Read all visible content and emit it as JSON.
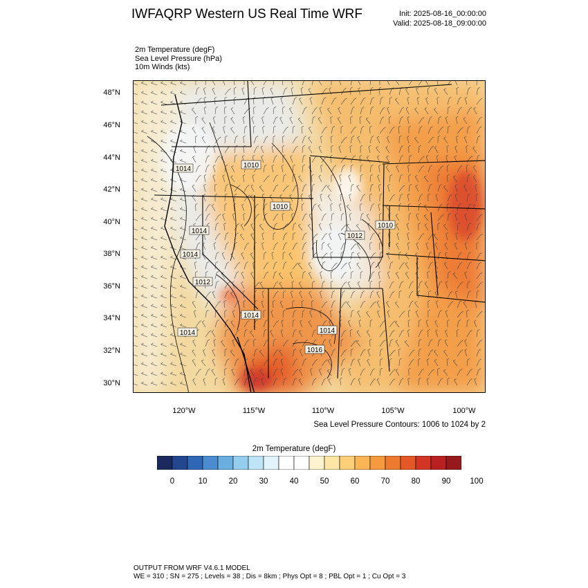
{
  "header": {
    "title": "IWFAQRP Western US Real Time WRF",
    "init": "Init: 2025-08-16_00:00:00",
    "valid": "Valid: 2025-08-18_09:00:00"
  },
  "fields": [
    "2m Temperature   (degF)",
    "Sea Level Pressure   (hPa)",
    "10m Winds   (kts)"
  ],
  "map": {
    "lat_ticks": [
      "48°N",
      "46°N",
      "44°N",
      "42°N",
      "40°N",
      "38°N",
      "36°N",
      "34°N",
      "32°N",
      "30°N"
    ],
    "lon_ticks": [
      "120°W",
      "115°W",
      "110°W",
      "105°W",
      "100°W"
    ],
    "contour_labels": [
      "1014",
      "1010",
      "1010",
      "1014",
      "1014",
      "1012",
      "1014",
      "1016",
      "1014",
      "1010",
      "1012",
      "1014"
    ],
    "contour_note": "Sea Level Pressure Contours: 1006 to 1024 by 2"
  },
  "colorbar": {
    "title": "2m Temperature  (degF)",
    "colors": [
      "#1b2a5e",
      "#24468f",
      "#2f66b5",
      "#4a8ccf",
      "#6aaee0",
      "#95cdef",
      "#c0e4f7",
      "#e2f3fb",
      "#ffffff",
      "#ffffff",
      "#fdf3cf",
      "#fde6a6",
      "#fdcf79",
      "#fbb556",
      "#f69a3f",
      "#ee7a30",
      "#e45727",
      "#d33524",
      "#b92021",
      "#961a1c"
    ],
    "labels": [
      "0",
      "10",
      "20",
      "30",
      "40",
      "50",
      "60",
      "70",
      "80",
      "90",
      "100"
    ]
  },
  "footer": {
    "line1": "OUTPUT FROM WRF V4.6.1 MODEL",
    "line2": "WE = 310 ; SN = 275 ; Levels = 38 ; Dis = 8km ; Phys Opt = 8 ; PBL Opt = 1 ; Cu Opt = 3"
  }
}
